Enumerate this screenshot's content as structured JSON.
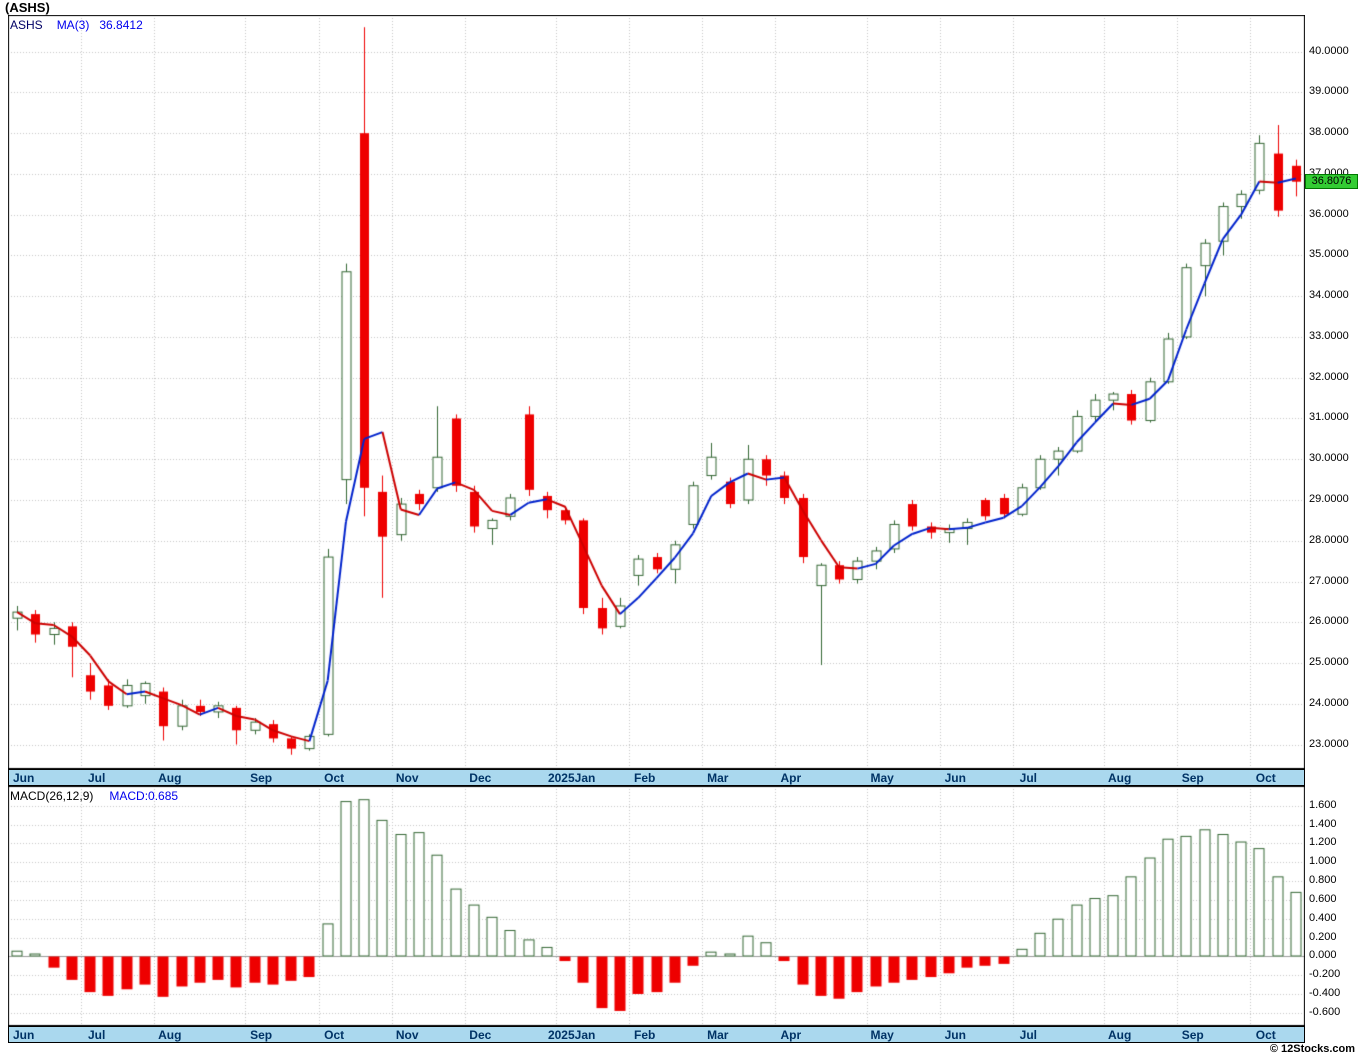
{
  "page_title": "(ASHS)",
  "copyright": "© 12Stocks.com",
  "price_panel": {
    "legend_symbol": "ASHS",
    "legend_ma": "MA(3)",
    "legend_ma_value": "36.8412",
    "last_price_tag": "36.8076",
    "ytick_labels": [
      "40.0000",
      "39.0000",
      "38.0000",
      "37.0000",
      "36.0000",
      "35.0000",
      "34.0000",
      "33.0000",
      "32.0000",
      "31.0000",
      "30.0000",
      "29.0000",
      "28.0000",
      "27.0000",
      "26.0000",
      "25.0000",
      "24.0000",
      "23.0000"
    ]
  },
  "macd_panel": {
    "legend_name": "MACD(26,12,9)",
    "legend_value": "MACD:0.685",
    "ytick_labels": [
      "1.600",
      "1.400",
      "1.200",
      "1.000",
      "0.800",
      "0.600",
      "0.400",
      "0.200",
      "0.000",
      "-0.200",
      "-0.400",
      "-0.600"
    ]
  },
  "x_axis": {
    "labels": [
      "Jun",
      "Jul",
      "Aug",
      "Sep",
      "Oct",
      "Nov",
      "Dec",
      "2025Jan",
      "Feb",
      "Mar",
      "Apr",
      "May",
      "Jun",
      "Jul",
      "Aug",
      "Sep",
      "Oct"
    ]
  },
  "colors": {
    "candle_up": "#336633",
    "candle_down": "#ee0000",
    "ma_rising": "#0022cc",
    "ma_falling": "#cc0000",
    "grid": "#c4c4c4",
    "axis_band": "#aad8ee",
    "price_tag_bg": "#33cc33",
    "macd_pos": "#336633",
    "macd_neg": "#ee0000"
  },
  "chart_data": [
    {
      "type": "candlestick",
      "title": "(ASHS)",
      "ma_period": 3,
      "ma_last_value": 36.8412,
      "last_close": 36.8076,
      "ylim": [
        22.4,
        40.9
      ],
      "yticks": [
        40,
        39,
        38,
        37,
        36,
        35,
        34,
        33,
        32,
        31,
        30,
        29,
        28,
        27,
        26,
        25,
        24,
        23
      ],
      "month_starts": [
        0,
        4,
        8,
        13,
        17,
        21,
        25,
        30,
        34,
        38,
        42,
        47,
        51,
        55,
        60,
        64,
        68
      ],
      "month_labels": [
        "Jun",
        "Jul",
        "Aug",
        "Sep",
        "Oct",
        "Nov",
        "Dec",
        "2025Jan",
        "Feb",
        "Mar",
        "Apr",
        "May",
        "Jun",
        "Jul",
        "Aug",
        "Sep",
        "Oct"
      ],
      "candles": [
        [
          26.1,
          26.4,
          25.8,
          26.25
        ],
        [
          26.2,
          26.3,
          25.5,
          25.7
        ],
        [
          25.7,
          26.0,
          25.45,
          25.85
        ],
        [
          25.9,
          26.0,
          24.65,
          25.4
        ],
        [
          24.7,
          25.0,
          24.1,
          24.3
        ],
        [
          24.45,
          24.6,
          23.85,
          23.95
        ],
        [
          23.95,
          24.6,
          23.9,
          24.45
        ],
        [
          24.2,
          24.55,
          24.0,
          24.5
        ],
        [
          24.3,
          24.4,
          23.1,
          23.45
        ],
        [
          23.45,
          24.1,
          23.35,
          23.95
        ],
        [
          23.95,
          24.1,
          23.7,
          23.8
        ],
        [
          23.8,
          24.05,
          23.65,
          23.95
        ],
        [
          23.9,
          23.95,
          23.0,
          23.35
        ],
        [
          23.35,
          23.65,
          23.25,
          23.55
        ],
        [
          23.5,
          23.6,
          23.05,
          23.15
        ],
        [
          23.15,
          23.2,
          22.75,
          22.9
        ],
        [
          22.9,
          23.25,
          22.85,
          23.2
        ],
        [
          23.25,
          27.8,
          23.2,
          27.6
        ],
        [
          29.5,
          34.8,
          28.9,
          34.6
        ],
        [
          38.0,
          40.6,
          28.6,
          29.3
        ],
        [
          29.2,
          29.6,
          26.6,
          28.1
        ],
        [
          28.15,
          29.05,
          28.0,
          28.9
        ],
        [
          29.15,
          29.25,
          28.75,
          28.9
        ],
        [
          29.3,
          31.3,
          29.2,
          30.05
        ],
        [
          31.0,
          31.1,
          29.2,
          29.35
        ],
        [
          29.2,
          29.35,
          28.2,
          28.35
        ],
        [
          28.3,
          28.55,
          27.9,
          28.5
        ],
        [
          28.6,
          29.15,
          28.5,
          29.05
        ],
        [
          31.1,
          31.3,
          29.1,
          29.25
        ],
        [
          29.1,
          29.2,
          28.55,
          28.75
        ],
        [
          28.75,
          28.85,
          28.4,
          28.5
        ],
        [
          28.5,
          28.55,
          26.2,
          26.35
        ],
        [
          26.35,
          26.6,
          25.7,
          25.85
        ],
        [
          25.9,
          26.6,
          25.85,
          26.4
        ],
        [
          27.15,
          27.65,
          26.9,
          27.55
        ],
        [
          27.6,
          27.7,
          27.2,
          27.3
        ],
        [
          27.3,
          28.0,
          26.95,
          27.9
        ],
        [
          28.4,
          29.45,
          28.3,
          29.35
        ],
        [
          29.6,
          30.4,
          29.5,
          30.05
        ],
        [
          29.45,
          29.55,
          28.8,
          28.9
        ],
        [
          29.0,
          30.35,
          28.9,
          30.0
        ],
        [
          30.0,
          30.1,
          29.35,
          29.6
        ],
        [
          29.6,
          29.7,
          28.9,
          29.05
        ],
        [
          29.05,
          29.15,
          27.45,
          27.6
        ],
        [
          26.9,
          27.45,
          24.95,
          27.4
        ],
        [
          27.4,
          27.5,
          26.95,
          27.05
        ],
        [
          27.05,
          27.6,
          26.95,
          27.5
        ],
        [
          27.5,
          27.85,
          27.3,
          27.75
        ],
        [
          27.8,
          28.5,
          27.7,
          28.4
        ],
        [
          28.9,
          29.0,
          28.25,
          28.35
        ],
        [
          28.35,
          28.45,
          28.05,
          28.2
        ],
        [
          28.2,
          28.4,
          27.95,
          28.3
        ],
        [
          28.3,
          28.55,
          27.9,
          28.45
        ],
        [
          29.0,
          29.05,
          28.5,
          28.6
        ],
        [
          29.05,
          29.15,
          28.55,
          28.65
        ],
        [
          28.65,
          29.4,
          28.6,
          29.3
        ],
        [
          29.3,
          30.1,
          29.25,
          30.0
        ],
        [
          30.0,
          30.3,
          29.6,
          30.2
        ],
        [
          30.2,
          31.2,
          30.15,
          31.05
        ],
        [
          31.05,
          31.6,
          30.9,
          31.45
        ],
        [
          31.45,
          31.65,
          31.2,
          31.6
        ],
        [
          31.6,
          31.7,
          30.85,
          30.95
        ],
        [
          30.95,
          32.0,
          30.9,
          31.9
        ],
        [
          31.9,
          33.1,
          31.85,
          32.95
        ],
        [
          33.0,
          34.8,
          32.95,
          34.7
        ],
        [
          34.75,
          35.4,
          34.0,
          35.3
        ],
        [
          35.35,
          36.3,
          35.0,
          36.2
        ],
        [
          36.2,
          36.6,
          35.9,
          36.5
        ],
        [
          36.6,
          37.95,
          36.5,
          37.75
        ],
        [
          37.5,
          38.2,
          35.95,
          36.1
        ],
        [
          37.2,
          37.35,
          36.45,
          36.81
        ]
      ]
    },
    {
      "type": "bar",
      "title": "MACD(26,12,9)",
      "last_value": 0.685,
      "ylim": [
        -0.74,
        1.81
      ],
      "yticks": [
        1.6,
        1.4,
        1.2,
        1.0,
        0.8,
        0.6,
        0.4,
        0.2,
        0.0,
        -0.2,
        -0.4,
        -0.6
      ],
      "values": [
        0.06,
        0.03,
        -0.12,
        -0.25,
        -0.38,
        -0.42,
        -0.35,
        -0.3,
        -0.43,
        -0.32,
        -0.28,
        -0.25,
        -0.33,
        -0.28,
        -0.3,
        -0.26,
        -0.22,
        0.35,
        1.65,
        1.67,
        1.45,
        1.3,
        1.32,
        1.08,
        0.72,
        0.55,
        0.42,
        0.28,
        0.18,
        0.1,
        -0.05,
        -0.28,
        -0.55,
        -0.58,
        -0.4,
        -0.38,
        -0.28,
        -0.1,
        0.05,
        0.03,
        0.22,
        0.15,
        -0.05,
        -0.3,
        -0.42,
        -0.45,
        -0.38,
        -0.32,
        -0.28,
        -0.25,
        -0.22,
        -0.18,
        -0.12,
        -0.1,
        -0.08,
        0.08,
        0.25,
        0.4,
        0.55,
        0.62,
        0.65,
        0.85,
        1.05,
        1.25,
        1.28,
        1.35,
        1.3,
        1.22,
        1.15,
        0.85,
        0.685
      ]
    }
  ]
}
